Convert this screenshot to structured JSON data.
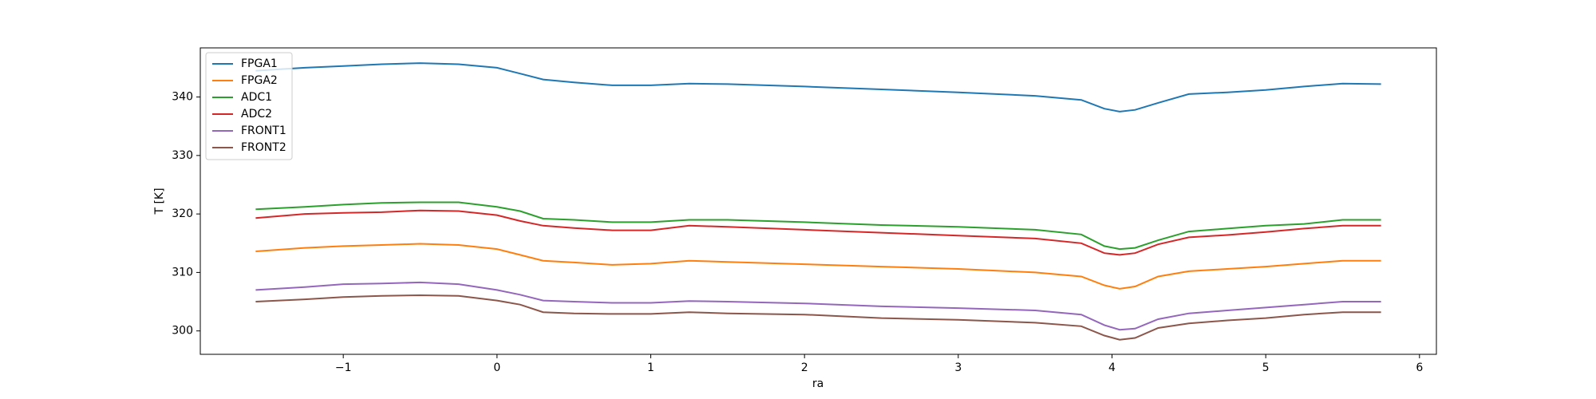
{
  "chart_data": {
    "type": "line",
    "xlabel": "ra",
    "ylabel": "T [K]",
    "x": [
      -1.57,
      -1.25,
      -1.0,
      -0.75,
      -0.5,
      -0.25,
      0,
      0.15,
      0.3,
      0.5,
      0.75,
      1.0,
      1.25,
      1.5,
      2.0,
      2.5,
      3.0,
      3.5,
      3.8,
      3.95,
      4.05,
      4.15,
      4.3,
      4.5,
      4.75,
      5.0,
      5.25,
      5.5,
      5.75
    ],
    "series": [
      {
        "name": "FPGA1",
        "color": "#1f77b4",
        "values": [
          344.5,
          345,
          345.3,
          345.6,
          345.8,
          345.6,
          345,
          344,
          343,
          342.5,
          342,
          342,
          342.3,
          342.2,
          341.8,
          341.3,
          340.8,
          340.2,
          339.5,
          338,
          337.5,
          337.8,
          339,
          340.5,
          340.8,
          341.2,
          341.8,
          342.3,
          342.2
        ]
      },
      {
        "name": "FPGA2",
        "color": "#ff7f0e",
        "values": [
          313.6,
          314.2,
          314.5,
          314.7,
          314.9,
          314.7,
          314,
          313,
          312,
          311.7,
          311.3,
          311.5,
          312,
          311.8,
          311.4,
          311,
          310.6,
          310,
          309.3,
          307.8,
          307.2,
          307.6,
          309.3,
          310.2,
          310.6,
          311,
          311.5,
          312,
          312
        ]
      },
      {
        "name": "ADC1",
        "color": "#2ca02c",
        "values": [
          320.8,
          321.2,
          321.6,
          321.9,
          322,
          322,
          321.2,
          320.5,
          319.2,
          319,
          318.6,
          318.6,
          319,
          319,
          318.6,
          318.1,
          317.8,
          317.3,
          316.5,
          314.5,
          314,
          314.2,
          315.5,
          317,
          317.5,
          318,
          318.3,
          319,
          319
        ]
      },
      {
        "name": "ADC2",
        "color": "#d62728",
        "values": [
          319.3,
          320,
          320.2,
          320.3,
          320.6,
          320.5,
          319.8,
          318.8,
          318,
          317.6,
          317.2,
          317.2,
          318,
          317.8,
          317.3,
          316.8,
          316.3,
          315.8,
          315,
          313.3,
          313,
          313.3,
          314.8,
          316,
          316.4,
          316.9,
          317.5,
          318,
          318
        ]
      },
      {
        "name": "FRONT1",
        "color": "#9467bd",
        "values": [
          307,
          307.5,
          308,
          308.1,
          308.3,
          308,
          307,
          306.2,
          305.2,
          305,
          304.8,
          304.8,
          305.1,
          305,
          304.7,
          304.2,
          303.9,
          303.5,
          302.8,
          301,
          300.2,
          300.4,
          302,
          303,
          303.5,
          304,
          304.5,
          305,
          305
        ]
      },
      {
        "name": "FRONT2",
        "color": "#8c564b",
        "values": [
          305,
          305.4,
          305.8,
          306,
          306.1,
          306,
          305.2,
          304.5,
          303.2,
          303,
          302.9,
          302.9,
          303.2,
          303,
          302.8,
          302.2,
          301.9,
          301.4,
          300.8,
          299.2,
          298.5,
          298.8,
          300.5,
          301.3,
          301.8,
          302.2,
          302.8,
          303.2,
          303.2
        ]
      }
    ],
    "xlim": [
      -1.93,
      6.11
    ],
    "xticks": [
      {
        "value": -1,
        "label": "−1"
      },
      0,
      1,
      2,
      3,
      4,
      5,
      6
    ],
    "ylim": [
      296,
      348.4
    ],
    "yticks": [
      300,
      310,
      320,
      330,
      340
    ],
    "legend": "upper left"
  }
}
